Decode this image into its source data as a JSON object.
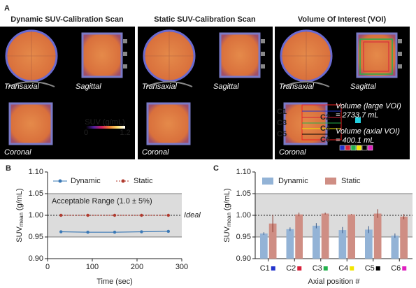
{
  "panel_a": {
    "label": "A",
    "panels": [
      {
        "title": "Dynamic SUV-Calibration Scan",
        "transaxial": "Transaxial",
        "sagittal": "Sagittal",
        "coronal": "Coronal"
      },
      {
        "title": "Static SUV-Calibration Scan",
        "transaxial": "Transaxial",
        "sagittal": "Sagittal",
        "coronal": "Coronal"
      },
      {
        "title": "Volume Of Interest (VOI)",
        "transaxial": "Transaxial",
        "sagittal": "Sagittal",
        "coronal": "Coronal"
      }
    ],
    "colorbar": {
      "title": "SUV (g/mL)",
      "min": 0,
      "max": 1.2
    },
    "voi": {
      "large_label": "Volume (large VOI)",
      "large_value": "= 2733.7 mL",
      "axial_label": "Volume (axial VOI)",
      "axial_value": "= 400.1 mL",
      "regions": [
        "C1",
        "C2",
        "C3",
        "C4",
        "C5",
        "C6"
      ]
    }
  },
  "chart_data": [
    {
      "type": "line",
      "panel_label": "B",
      "x_label": "Time (sec)",
      "y_label": "SUV",
      "y_label_sub": "mean",
      "y_label_unit": "(g/mL)",
      "x": [
        30,
        90,
        150,
        210,
        270
      ],
      "series": [
        {
          "name": "Dynamic",
          "color": "#3a78b5",
          "dash": false,
          "values": [
            0.962,
            0.961,
            0.961,
            0.962,
            0.963
          ]
        },
        {
          "name": "Static",
          "color": "#b03a2e",
          "dash": true,
          "values": [
            1.0,
            1.0,
            1.0,
            1.0,
            1.0
          ]
        }
      ],
      "xlim": [
        0,
        300
      ],
      "xticks": [
        0,
        100,
        200,
        300
      ],
      "ylim": [
        0.9,
        1.1
      ],
      "yticks": [
        {
          "value": 0.9,
          "label": "0.90"
        },
        {
          "value": 0.95,
          "label": "0.95"
        },
        {
          "value": 1.0,
          "label": "1.00"
        },
        {
          "value": 1.05,
          "label": "1.05"
        },
        {
          "value": 1.1,
          "label": "1.10"
        }
      ],
      "band": [
        0.95,
        1.05
      ],
      "band_label": "Acceptable Range (1.0 ± 5%)",
      "reference_line": 1.0,
      "reference_label": "Ideal"
    },
    {
      "type": "bar",
      "panel_label": "C",
      "x_label": "Axial position #",
      "y_label": "SUV",
      "y_label_sub": "mean",
      "y_label_unit": "(g/mL)",
      "categories": [
        "C1",
        "C2",
        "C3",
        "C4",
        "C5",
        "C6"
      ],
      "category_colors": [
        "#2233cc",
        "#d8203a",
        "#22b14c",
        "#f2e600",
        "#000000",
        "#e020c0"
      ],
      "series": [
        {
          "name": "Dynamic",
          "color": "#93b3d6",
          "values": [
            0.958,
            0.968,
            0.976,
            0.966,
            0.967,
            0.953
          ],
          "errors": [
            0.003,
            0.004,
            0.006,
            0.007,
            0.008,
            0.005
          ]
        },
        {
          "name": "Static",
          "color": "#cf8e84",
          "values": [
            0.981,
            1.002,
            1.004,
            1.002,
            1.004,
            0.997
          ],
          "errors": [
            0.02,
            0.004,
            0.002,
            0.001,
            0.01,
            0.006
          ]
        }
      ],
      "ylim": [
        0.9,
        1.1
      ],
      "yticks": [
        {
          "value": 0.9,
          "label": "0.90"
        },
        {
          "value": 0.95,
          "label": "0.95"
        },
        {
          "value": 1.0,
          "label": "1.00"
        },
        {
          "value": 1.05,
          "label": "1.05"
        },
        {
          "value": 1.1,
          "label": "1.10"
        }
      ],
      "band": [
        0.95,
        1.05
      ],
      "reference_line": 1.0
    }
  ]
}
